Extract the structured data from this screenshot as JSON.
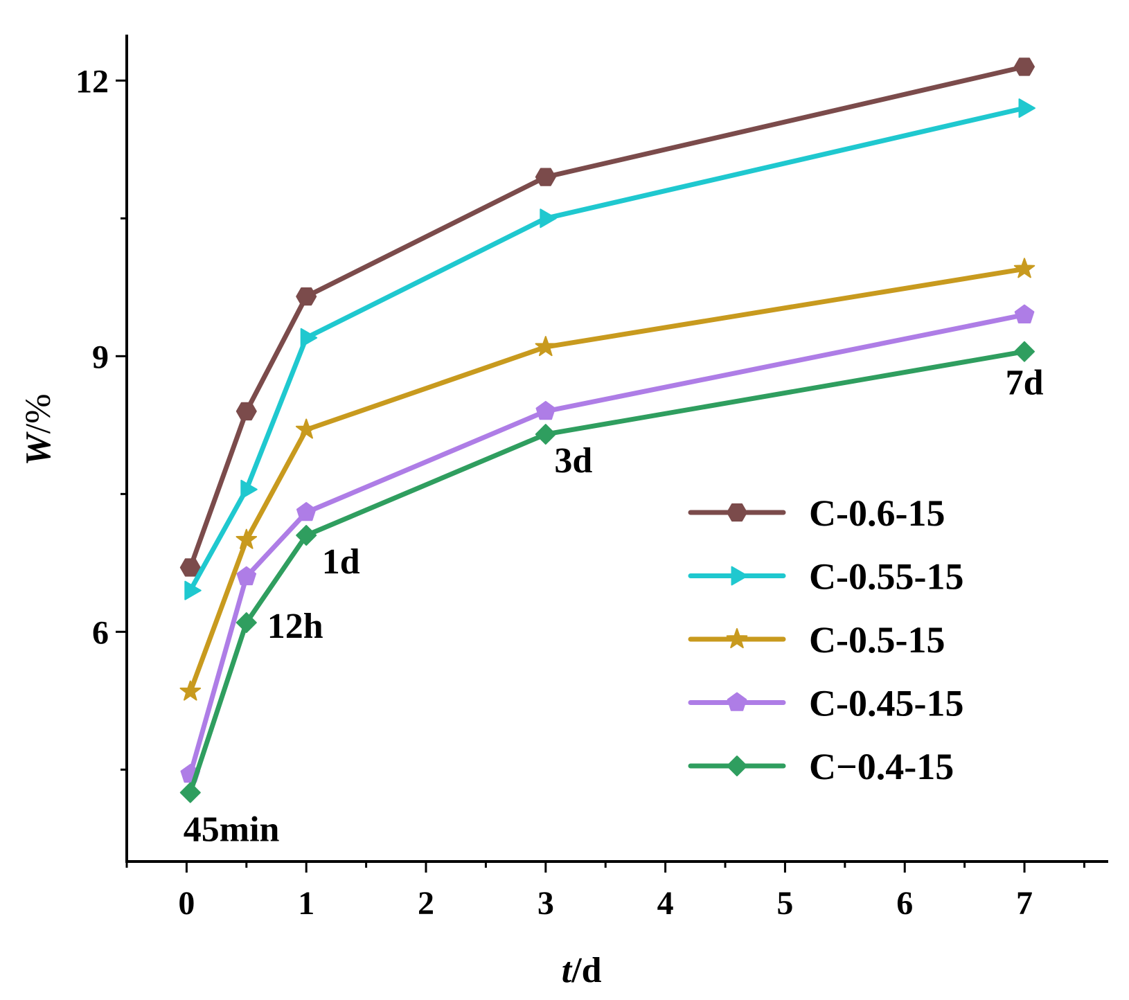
{
  "chart_data": {
    "type": "line",
    "title": "",
    "xlabel": "d",
    "xlabel_italic": "t",
    "xlabel_sep": "/",
    "ylabel": "%",
    "ylabel_italic": "W",
    "ylabel_sep": "/",
    "xlim": [
      -0.5,
      7.7
    ],
    "ylim": [
      3.5,
      12.5
    ],
    "xticks": [
      0,
      1,
      2,
      3,
      4,
      5,
      6,
      7
    ],
    "xtick_labels": [
      "0",
      "1",
      "2",
      "3",
      "4",
      "5",
      "6",
      "7"
    ],
    "yticks": [
      6,
      9,
      12
    ],
    "ytick_labels": [
      "6",
      "9",
      "12"
    ],
    "x": [
      0.03125,
      0.5,
      1,
      3,
      7
    ],
    "series": [
      {
        "name": "C-0.6-15",
        "color": "#7b4b4b",
        "marker": "hexagon",
        "values": [
          6.7,
          8.4,
          9.65,
          10.95,
          12.15
        ]
      },
      {
        "name": "C-0.55-15",
        "color": "#1fc8cf",
        "marker": "triangle-right",
        "values": [
          6.45,
          7.55,
          9.2,
          10.5,
          11.7
        ]
      },
      {
        "name": "C-0.5-15",
        "color": "#c89a1e",
        "marker": "star",
        "values": [
          5.35,
          7.0,
          8.2,
          9.1,
          9.95
        ]
      },
      {
        "name": "C-0.45-15",
        "color": "#ae7de6",
        "marker": "pentagon",
        "values": [
          4.45,
          6.6,
          7.3,
          8.4,
          9.45
        ]
      },
      {
        "name": "C−0.4-15",
        "color": "#2f9e5f",
        "marker": "diamond",
        "values": [
          4.25,
          6.1,
          7.05,
          8.15,
          9.05
        ]
      }
    ],
    "annotations": [
      {
        "text": "45min",
        "x": 0.03125,
        "y": 4.25
      },
      {
        "text": "12h",
        "x": 0.5,
        "y": 6.1
      },
      {
        "text": "1d",
        "x": 1,
        "y": 7.05
      },
      {
        "text": "3d",
        "x": 3,
        "y": 8.15
      },
      {
        "text": "7d",
        "x": 7,
        "y": 9.05
      }
    ],
    "legend_position": "right-center",
    "grid": false
  }
}
